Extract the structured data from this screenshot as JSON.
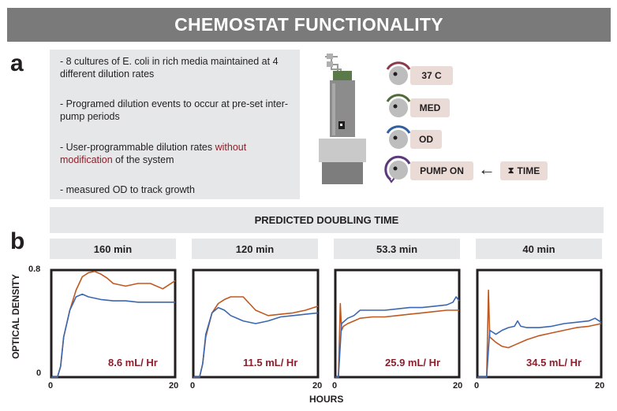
{
  "title": "CHEMOSTAT FUNCTIONALITY",
  "panel_a": {
    "letter": "a",
    "bullets": [
      {
        "text": "- 8 cultures of E. coli in rich media maintained at 4 different dilution rates"
      },
      {
        "text": "- Programed dilution events to occur at pre-set inter-pump periods"
      },
      {
        "pre": "- User-programmable dilution rates ",
        "red": "without modification",
        "post": " of the system"
      },
      {
        "text": "- measured OD to track growth"
      }
    ],
    "controls": [
      {
        "label": "37 C",
        "color": "#8b3a4a"
      },
      {
        "label": "MED",
        "color": "#4f6b3a"
      },
      {
        "label": "OD",
        "color": "#2f5f9f"
      },
      {
        "label": "PUMP ON",
        "color": "#5a3a7a"
      }
    ],
    "arrow_glyph": "←",
    "timer": {
      "glyph": "⧗",
      "label": "TIME"
    }
  },
  "panel_b": {
    "letter": "b",
    "header": "PREDICTED DOUBLING TIME"
  },
  "chart_data": {
    "type": "line",
    "ylabel": "OPTICAL DENSITY",
    "xlabel": "HOURS",
    "ylim": [
      0,
      0.8
    ],
    "xlim": [
      0,
      20
    ],
    "y_ticks": [
      "0",
      "0.8"
    ],
    "x_ticks": [
      "0",
      "20"
    ],
    "series_colors": [
      "#3a67b0",
      "#c0581f"
    ],
    "panels": [
      {
        "doubling_time": "160 min",
        "rate": "8.6 mL/ Hr",
        "blue": {
          "x": [
            0,
            1,
            1.5,
            2,
            3,
            4,
            5,
            6,
            8,
            10,
            12,
            14,
            16,
            18,
            20
          ],
          "y": [
            0,
            0,
            0.08,
            0.3,
            0.5,
            0.6,
            0.62,
            0.6,
            0.58,
            0.57,
            0.57,
            0.56,
            0.56,
            0.56,
            0.56
          ]
        },
        "orange": {
          "x": [
            0,
            1,
            1.5,
            2,
            3,
            4,
            5,
            6,
            7,
            8,
            9,
            10,
            12,
            14,
            16,
            18,
            20
          ],
          "y": [
            0,
            0,
            0.08,
            0.3,
            0.5,
            0.65,
            0.75,
            0.78,
            0.79,
            0.77,
            0.74,
            0.7,
            0.68,
            0.7,
            0.7,
            0.66,
            0.72
          ]
        }
      },
      {
        "doubling_time": "120 min",
        "rate": "11.5 mL/ Hr",
        "blue": {
          "x": [
            0,
            1,
            1.5,
            2,
            3,
            4,
            5,
            6,
            8,
            10,
            12,
            14,
            16,
            18,
            20
          ],
          "y": [
            0,
            0,
            0.1,
            0.32,
            0.48,
            0.52,
            0.5,
            0.46,
            0.42,
            0.4,
            0.42,
            0.45,
            0.46,
            0.47,
            0.48
          ]
        },
        "orange": {
          "x": [
            0,
            1,
            1.5,
            2,
            3,
            4,
            5,
            6,
            7,
            8,
            9,
            10,
            12,
            14,
            16,
            18,
            20
          ],
          "y": [
            0,
            0,
            0.1,
            0.3,
            0.48,
            0.55,
            0.58,
            0.6,
            0.6,
            0.6,
            0.55,
            0.5,
            0.46,
            0.47,
            0.48,
            0.5,
            0.53
          ]
        }
      },
      {
        "doubling_time": "53.3 min",
        "rate": "25.9 mL/ Hr",
        "blue": {
          "x": [
            0,
            0.5,
            1,
            2,
            3,
            4,
            6,
            8,
            10,
            12,
            14,
            16,
            18,
            19,
            19.5,
            20
          ],
          "y": [
            0,
            0,
            0.4,
            0.44,
            0.46,
            0.5,
            0.5,
            0.5,
            0.51,
            0.52,
            0.52,
            0.53,
            0.54,
            0.56,
            0.6,
            0.57
          ]
        },
        "orange": {
          "x": [
            0,
            0.5,
            0.8,
            1,
            1.3,
            2,
            3,
            4,
            6,
            8,
            10,
            12,
            14,
            16,
            18,
            20
          ],
          "y": [
            0,
            0,
            0.55,
            0.35,
            0.38,
            0.4,
            0.42,
            0.44,
            0.45,
            0.45,
            0.46,
            0.47,
            0.48,
            0.49,
            0.5,
            0.5
          ]
        }
      },
      {
        "doubling_time": "40 min",
        "rate": "34.5 mL/ Hr",
        "blue": {
          "x": [
            0,
            1.5,
            2,
            3,
            4,
            5,
            6,
            6.5,
            7,
            8,
            10,
            12,
            14,
            16,
            18,
            19,
            20
          ],
          "y": [
            0,
            0,
            0.35,
            0.32,
            0.35,
            0.37,
            0.38,
            0.42,
            0.38,
            0.37,
            0.37,
            0.38,
            0.4,
            0.41,
            0.42,
            0.44,
            0.41
          ]
        },
        "orange": {
          "x": [
            0,
            1.5,
            1.8,
            2,
            2.5,
            3,
            4,
            5,
            6,
            8,
            10,
            12,
            14,
            16,
            18,
            20
          ],
          "y": [
            0,
            0,
            0.65,
            0.3,
            0.28,
            0.26,
            0.23,
            0.22,
            0.24,
            0.28,
            0.31,
            0.33,
            0.35,
            0.37,
            0.38,
            0.4
          ]
        }
      }
    ]
  }
}
